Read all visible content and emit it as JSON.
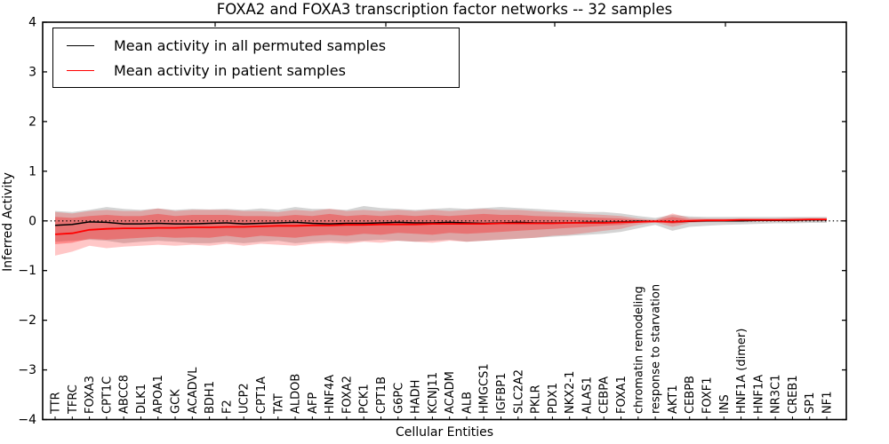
{
  "figure": {
    "title": "FOXA2 and FOXA3 transcription factor networks -- 32 samples"
  },
  "legend": {
    "entries": [
      {
        "label": "Mean activity in all permuted samples",
        "color": "#000000"
      },
      {
        "label": "Mean activity in patient samples",
        "color": "#ff0000"
      }
    ]
  },
  "chart_data": {
    "type": "line",
    "title": "FOXA2 and FOXA3 transcription factor networks -- 32 samples",
    "xlabel": "Cellular Entities",
    "ylabel": "Inferred Activity",
    "ylim": [
      -4,
      4
    ],
    "yticks": [
      4,
      3,
      2,
      1,
      0,
      -1,
      -2,
      -3,
      -4
    ],
    "grid": false,
    "zero_line_style": "dotted",
    "legend_position": "upper left",
    "categories": [
      "TTR",
      "TFRC",
      "FOXA3",
      "CPT1C",
      "ABCC8",
      "DLK1",
      "APOA1",
      "GCK",
      "ACADVL",
      "BDH1",
      "F2",
      "UCP2",
      "CPT1A",
      "TAT",
      "ALDOB",
      "AFP",
      "HNF4A",
      "FOXA2",
      "PCK1",
      "CPT1B",
      "G6PC",
      "HADH",
      "KCNJ11",
      "ACADM",
      "ALB",
      "HMGCS1",
      "IGFBP1",
      "SLC2A2",
      "PKLR",
      "PDX1",
      "NKX2-1",
      "ALAS1",
      "CEBPA",
      "FOXA1",
      "chromatin remodeling",
      "response to starvation",
      "AKT1",
      "CEBPB",
      "FOXF1",
      "INS",
      "HNF1A (dimer)",
      "HNF1A",
      "NR3C1",
      "CREB1",
      "SP1",
      "NF1"
    ],
    "series": [
      {
        "name": "Mean activity in all permuted samples",
        "color": "#000000",
        "width": 1.5,
        "values": [
          -0.09,
          -0.07,
          -0.02,
          -0.03,
          -0.06,
          -0.06,
          -0.05,
          -0.06,
          -0.06,
          -0.05,
          -0.04,
          -0.06,
          -0.05,
          -0.04,
          -0.03,
          -0.05,
          -0.06,
          -0.05,
          -0.05,
          -0.04,
          -0.03,
          -0.04,
          -0.04,
          -0.03,
          -0.04,
          -0.05,
          -0.04,
          -0.03,
          -0.04,
          -0.04,
          -0.04,
          -0.03,
          -0.03,
          -0.02,
          -0.01,
          -0.01,
          -0.02,
          -0.01,
          0.0,
          0.0,
          0.0,
          0.01,
          0.01,
          0.01,
          0.02,
          0.02
        ]
      },
      {
        "name": "Mean activity in patient samples",
        "color": "#ff0000",
        "width": 1.8,
        "values": [
          -0.27,
          -0.25,
          -0.18,
          -0.16,
          -0.15,
          -0.15,
          -0.14,
          -0.14,
          -0.13,
          -0.13,
          -0.12,
          -0.12,
          -0.11,
          -0.1,
          -0.1,
          -0.09,
          -0.09,
          -0.08,
          -0.08,
          -0.07,
          -0.07,
          -0.07,
          -0.06,
          -0.06,
          -0.06,
          -0.06,
          -0.05,
          -0.05,
          -0.05,
          -0.05,
          -0.04,
          -0.04,
          -0.04,
          -0.03,
          -0.02,
          -0.01,
          -0.02,
          0.0,
          0.01,
          0.01,
          0.02,
          0.02,
          0.02,
          0.02,
          0.03,
          0.03
        ]
      }
    ],
    "bands": [
      {
        "name": "permuted-samples-range",
        "color": "#787878",
        "opacity": 0.32,
        "upper": [
          0.2,
          0.18,
          0.22,
          0.28,
          0.24,
          0.22,
          0.25,
          0.22,
          0.24,
          0.23,
          0.24,
          0.22,
          0.25,
          0.22,
          0.28,
          0.24,
          0.24,
          0.22,
          0.3,
          0.26,
          0.24,
          0.22,
          0.24,
          0.26,
          0.24,
          0.26,
          0.28,
          0.26,
          0.24,
          0.22,
          0.2,
          0.18,
          0.18,
          0.15,
          0.1,
          0.06,
          0.12,
          0.09,
          0.08,
          0.08,
          0.08,
          0.08,
          0.08,
          0.08,
          0.08,
          0.08
        ],
        "lower": [
          -0.42,
          -0.4,
          -0.38,
          -0.4,
          -0.45,
          -0.42,
          -0.4,
          -0.42,
          -0.45,
          -0.45,
          -0.42,
          -0.45,
          -0.42,
          -0.4,
          -0.45,
          -0.42,
          -0.4,
          -0.42,
          -0.4,
          -0.38,
          -0.4,
          -0.42,
          -0.4,
          -0.38,
          -0.42,
          -0.4,
          -0.38,
          -0.36,
          -0.34,
          -0.32,
          -0.3,
          -0.28,
          -0.26,
          -0.22,
          -0.15,
          -0.08,
          -0.2,
          -0.12,
          -0.1,
          -0.08,
          -0.07,
          -0.06,
          -0.05,
          -0.05,
          -0.04,
          -0.04
        ]
      },
      {
        "name": "patient-samples-range",
        "color": "#ff0000",
        "opacity": 0.22,
        "upper": [
          0.18,
          0.15,
          0.2,
          0.22,
          0.2,
          0.2,
          0.25,
          0.2,
          0.22,
          0.22,
          0.22,
          0.2,
          0.2,
          0.18,
          0.22,
          0.2,
          0.24,
          0.2,
          0.22,
          0.2,
          0.22,
          0.2,
          0.22,
          0.2,
          0.22,
          0.24,
          0.22,
          0.22,
          0.2,
          0.18,
          0.16,
          0.14,
          0.12,
          0.1,
          0.05,
          0.02,
          0.15,
          0.06,
          0.05,
          0.05,
          0.05,
          0.05,
          0.05,
          0.06,
          0.06,
          0.06
        ],
        "lower": [
          -0.7,
          -0.62,
          -0.5,
          -0.55,
          -0.52,
          -0.5,
          -0.48,
          -0.5,
          -0.48,
          -0.5,
          -0.46,
          -0.5,
          -0.46,
          -0.48,
          -0.5,
          -0.46,
          -0.44,
          -0.46,
          -0.42,
          -0.44,
          -0.4,
          -0.42,
          -0.44,
          -0.4,
          -0.42,
          -0.4,
          -0.38,
          -0.36,
          -0.34,
          -0.3,
          -0.28,
          -0.24,
          -0.2,
          -0.16,
          -0.08,
          -0.03,
          -0.12,
          -0.04,
          -0.02,
          -0.01,
          0.0,
          0.0,
          0.0,
          0.0,
          0.01,
          0.01
        ]
      },
      {
        "name": "patient-samples-std",
        "color": "#ff0000",
        "opacity": 0.3,
        "upper": [
          0.08,
          0.06,
          0.1,
          0.12,
          0.1,
          0.1,
          0.14,
          0.1,
          0.12,
          0.12,
          0.12,
          0.1,
          0.1,
          0.09,
          0.12,
          0.1,
          0.14,
          0.1,
          0.12,
          0.1,
          0.12,
          0.1,
          0.12,
          0.1,
          0.12,
          0.14,
          0.12,
          0.12,
          0.1,
          0.09,
          0.08,
          0.07,
          0.06,
          0.05,
          0.02,
          0.01,
          0.08,
          0.03,
          0.03,
          0.03,
          0.03,
          0.03,
          0.03,
          0.04,
          0.04,
          0.04
        ],
        "lower": [
          -0.47,
          -0.44,
          -0.36,
          -0.38,
          -0.36,
          -0.34,
          -0.32,
          -0.34,
          -0.33,
          -0.34,
          -0.3,
          -0.34,
          -0.3,
          -0.32,
          -0.34,
          -0.3,
          -0.28,
          -0.3,
          -0.26,
          -0.28,
          -0.24,
          -0.26,
          -0.28,
          -0.24,
          -0.26,
          -0.24,
          -0.22,
          -0.2,
          -0.18,
          -0.16,
          -0.14,
          -0.12,
          -0.1,
          -0.08,
          -0.04,
          -0.01,
          -0.06,
          -0.02,
          -0.01,
          0.0,
          0.0,
          0.01,
          0.01,
          0.01,
          0.01,
          0.01
        ]
      }
    ]
  }
}
